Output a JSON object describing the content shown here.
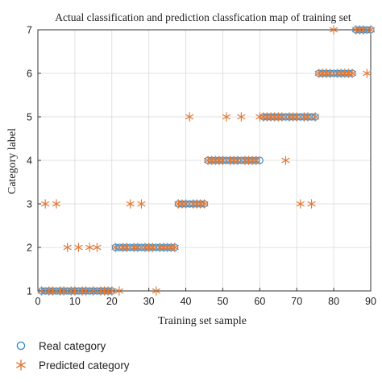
{
  "chart_data": {
    "type": "scatter",
    "title": "Actual classification and prediction classfication map of training set",
    "xlabel": "Training set sample",
    "ylabel": "Category label",
    "xlim": [
      0,
      90
    ],
    "ylim": [
      1,
      7
    ],
    "xticks": [
      "0",
      "10",
      "20",
      "30",
      "40",
      "50",
      "60",
      "70",
      "80",
      "90"
    ],
    "yticks": [
      "1",
      "2",
      "3",
      "4",
      "5",
      "6",
      "7"
    ],
    "grid": true,
    "legend_position": "bottom-left",
    "series": [
      {
        "name": "Real category",
        "marker": "circle",
        "color": "#3b8fd0",
        "x": [
          1,
          2,
          3,
          4,
          5,
          6,
          7,
          8,
          9,
          10,
          11,
          12,
          13,
          14,
          15,
          16,
          17,
          18,
          19,
          20,
          21,
          22,
          23,
          24,
          25,
          26,
          27,
          28,
          29,
          30,
          31,
          32,
          33,
          34,
          35,
          36,
          37,
          38,
          39,
          40,
          41,
          42,
          43,
          44,
          45,
          46,
          47,
          48,
          49,
          50,
          51,
          52,
          53,
          54,
          55,
          56,
          57,
          58,
          59,
          60,
          61,
          62,
          63,
          64,
          65,
          66,
          67,
          68,
          69,
          70,
          71,
          72,
          73,
          74,
          75,
          76,
          77,
          78,
          79,
          80,
          81,
          82,
          83,
          84,
          85,
          86,
          87,
          88,
          89,
          90
        ],
        "y": [
          1,
          1,
          1,
          1,
          1,
          1,
          1,
          1,
          1,
          1,
          1,
          1,
          1,
          1,
          1,
          1,
          1,
          1,
          1,
          1,
          2,
          2,
          2,
          2,
          2,
          2,
          2,
          2,
          2,
          2,
          2,
          2,
          2,
          2,
          2,
          2,
          2,
          3,
          3,
          3,
          3,
          3,
          3,
          3,
          3,
          4,
          4,
          4,
          4,
          4,
          4,
          4,
          4,
          4,
          4,
          4,
          4,
          4,
          4,
          4,
          5,
          5,
          5,
          5,
          5,
          5,
          5,
          5,
          5,
          5,
          5,
          5,
          5,
          5,
          5,
          6,
          6,
          6,
          6,
          6,
          6,
          6,
          6,
          6,
          6,
          7,
          7,
          7,
          7,
          7
        ]
      },
      {
        "name": "Predicted category",
        "marker": "asterisk",
        "color": "#e07b39",
        "x": [
          1,
          2,
          3,
          4,
          5,
          6,
          7,
          8,
          9,
          10,
          11,
          12,
          13,
          14,
          15,
          16,
          17,
          18,
          19,
          20,
          21,
          22,
          23,
          24,
          25,
          26,
          27,
          28,
          29,
          30,
          31,
          32,
          33,
          34,
          35,
          36,
          37,
          38,
          39,
          40,
          41,
          42,
          43,
          44,
          45,
          46,
          47,
          48,
          49,
          50,
          51,
          52,
          53,
          54,
          55,
          56,
          57,
          58,
          59,
          60,
          61,
          62,
          63,
          64,
          65,
          66,
          67,
          68,
          69,
          70,
          71,
          72,
          73,
          74,
          75,
          76,
          77,
          78,
          79,
          80,
          81,
          82,
          83,
          84,
          85,
          86,
          87,
          88,
          89,
          90
        ],
        "y": [
          1,
          3,
          1,
          1,
          3,
          1,
          1,
          2,
          1,
          1,
          2,
          1,
          1,
          2,
          1,
          2,
          1,
          1,
          1,
          1,
          2,
          1,
          2,
          2,
          3,
          2,
          2,
          3,
          2,
          2,
          2,
          1,
          2,
          2,
          2,
          2,
          2,
          3,
          3,
          3,
          5,
          3,
          3,
          3,
          3,
          4,
          4,
          4,
          4,
          4,
          5,
          4,
          4,
          4,
          5,
          4,
          4,
          4,
          4,
          5,
          5,
          5,
          5,
          5,
          5,
          5,
          4,
          5,
          5,
          5,
          3,
          5,
          5,
          3,
          5,
          6,
          6,
          6,
          6,
          7,
          6,
          6,
          6,
          6,
          6,
          7,
          7,
          7,
          6,
          7
        ]
      }
    ]
  }
}
